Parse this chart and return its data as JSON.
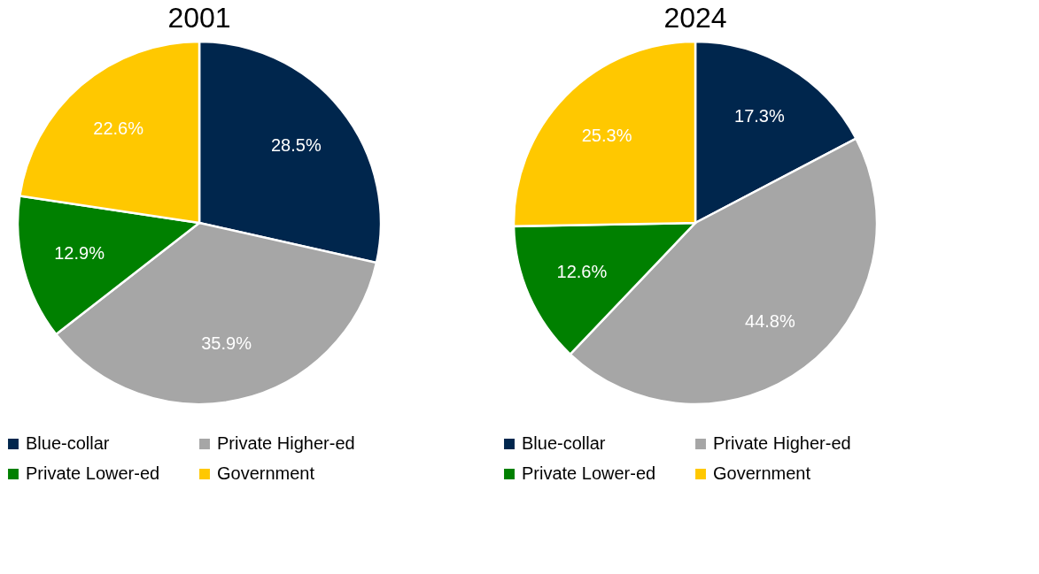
{
  "chart_data": [
    {
      "type": "pie",
      "title": "2001",
      "categories": [
        "Blue-collar",
        "Private Higher-ed",
        "Private Lower-ed",
        "Government"
      ],
      "values": [
        28.5,
        35.9,
        12.9,
        22.6
      ],
      "value_labels": [
        "28.5%",
        "35.9%",
        "12.9%",
        "22.6%"
      ],
      "colors": [
        "#00264d",
        "#a6a6a6",
        "#008000",
        "#ffc800"
      ],
      "legend": "bottom"
    },
    {
      "type": "pie",
      "title": "2024",
      "categories": [
        "Blue-collar",
        "Private Higher-ed",
        "Private Lower-ed",
        "Government"
      ],
      "values": [
        17.3,
        44.8,
        12.6,
        25.3
      ],
      "value_labels": [
        "17.3%",
        "44.8%",
        "12.6%",
        "25.3%"
      ],
      "colors": [
        "#00264d",
        "#a6a6a6",
        "#008000",
        "#ffc800"
      ],
      "legend": "bottom"
    }
  ]
}
